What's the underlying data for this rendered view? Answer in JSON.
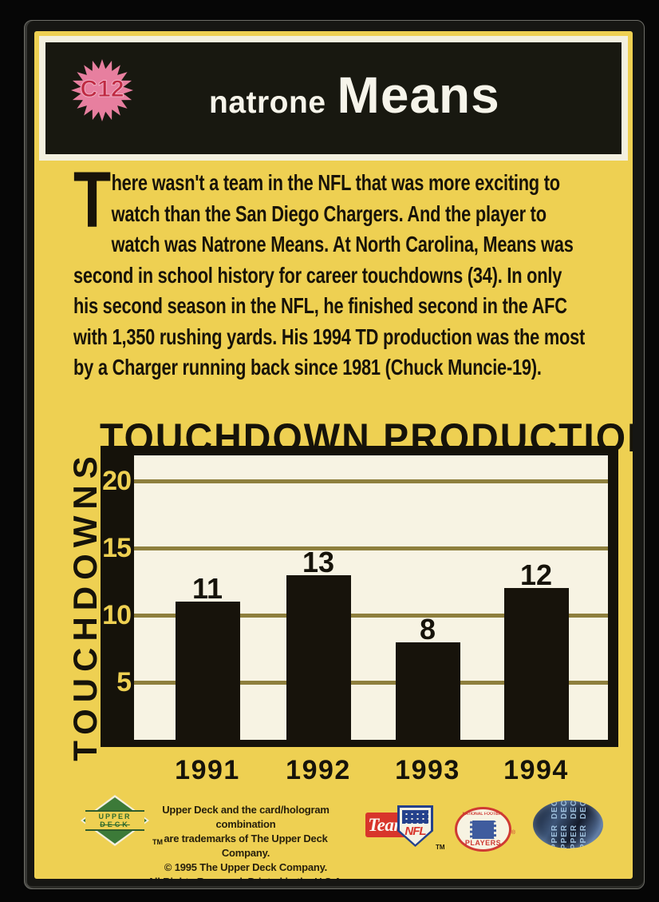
{
  "header": {
    "card_number": "C12",
    "first_name": "natrone",
    "last_name": "Means"
  },
  "bio": {
    "dropcap": "T",
    "text": "here wasn't a team in the NFL that was more exciting to\nwatch than the San Diego Chargers. And the player to\nwatch was Natrone Means. At North Carolina, Means was\nsecond in school history for career touchdowns (34). In only\nhis second season in the NFL, he finished second in the AFC\nwith 1,350 rushing yards. His 1994 TD production was the most\nby a Charger running back since 1981 (Chuck Muncie-19)."
  },
  "chart_data": {
    "type": "bar",
    "title": "TOUCHDOWN PRODUCTION",
    "ylabel": "TOUCHDOWNS",
    "xlabel": "",
    "categories": [
      "1991",
      "1992",
      "1993",
      "1994"
    ],
    "values": [
      11,
      13,
      8,
      12
    ],
    "yticks": [
      5,
      10,
      15,
      20
    ],
    "ylim": [
      0,
      22
    ],
    "grid": "horizontal",
    "legend": "none",
    "bar_color": "#17130b",
    "gridline_color": "#8e7f3d",
    "tick_color": "#eed052",
    "plot_background": "#f7f3e3"
  },
  "footer": {
    "legal": "Upper Deck and the card/hologram combination\nare trademarks of The Upper Deck Company.\n© 1995 The Upper Deck Company.\nAll Rights Reserved. Printed in the U.S.A.",
    "upper_deck_logo": {
      "line1": "UPPER",
      "line2": "DECK",
      "tm": "TM"
    },
    "team_nfl": {
      "team": "Team",
      "nfl": "NFL",
      "tm": "TM"
    },
    "players": {
      "top": "NATIONAL FOOTBALL LEAGUE",
      "bottom": "PLAYERS",
      "r": "®"
    },
    "hologram_text": "UPPER DECK UPPER DECK UPPER DECK UPPER DECK"
  },
  "colors": {
    "card_yellow": "#eed052",
    "header_black": "#181810",
    "starburst_pink": "#e77f9f",
    "card_number_red": "#bf2a42",
    "name_white": "#f6f4ea",
    "text_black": "#181309",
    "white_frame": "#f3f0df",
    "upper_deck_green": "#3c7a38",
    "team_nfl_red": "#d8352b",
    "shield_blue": "#24418c",
    "players_red": "#cf3a33",
    "players_blue": "#3f5c9e",
    "hologram_blue": "#3d5578"
  }
}
